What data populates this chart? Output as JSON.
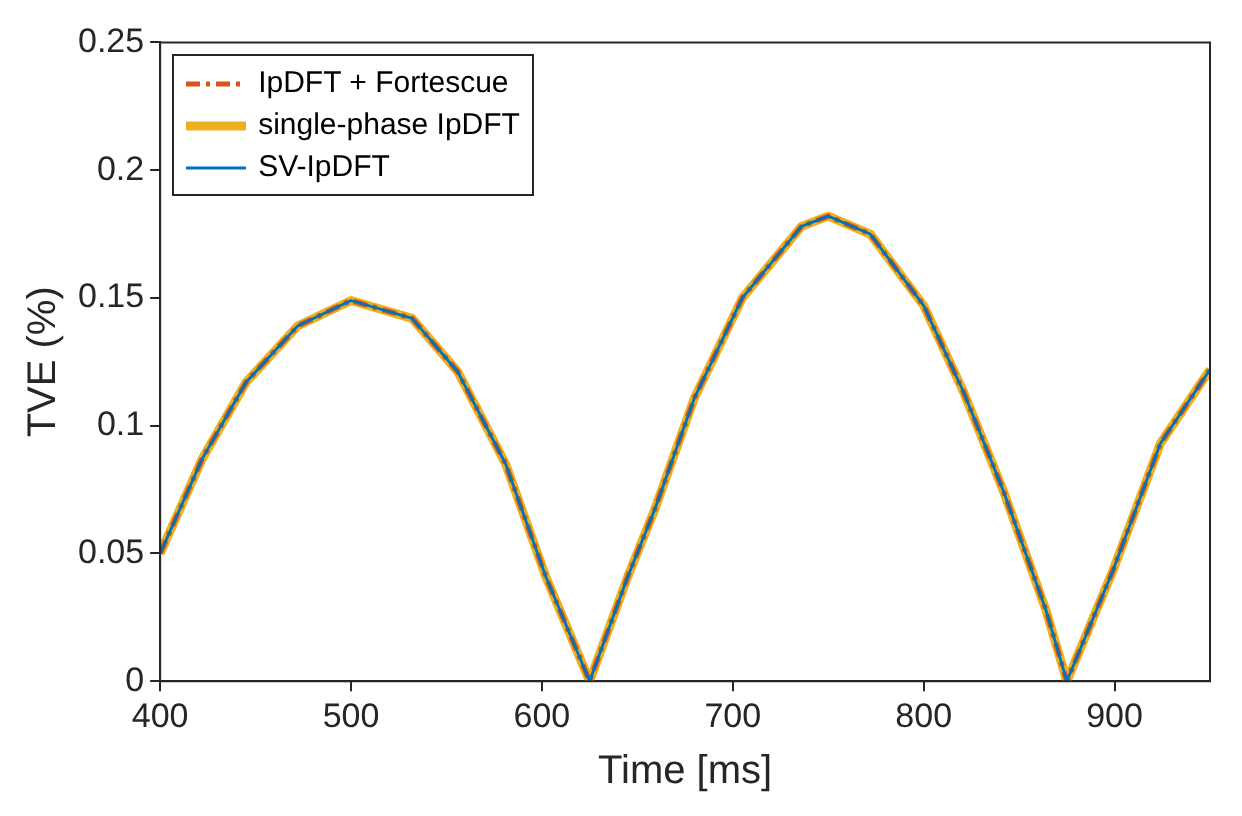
{
  "chart_data": {
    "type": "line",
    "xlabel": "Time [ms]",
    "ylabel": "TVE (%)",
    "x": [
      400,
      422,
      445,
      472,
      500,
      532,
      556,
      581,
      602,
      625,
      645,
      659,
      680,
      705,
      736,
      750,
      772,
      800,
      821,
      842,
      864,
      875,
      899,
      924,
      950
    ],
    "series": [
      {
        "name": "IpDFT + Fortescue",
        "color": "#d95319",
        "line_style": "dashed",
        "values": [
          0.05,
          0.087,
          0.117,
          0.139,
          0.149,
          0.142,
          0.121,
          0.085,
          0.041,
          0,
          0.041,
          0.067,
          0.111,
          0.15,
          0.178,
          0.182,
          0.175,
          0.147,
          0.113,
          0.074,
          0.028,
          0,
          0.043,
          0.093,
          0.122
        ]
      },
      {
        "name": "single-phase IpDFT",
        "color": "#edb120",
        "line_style": "solid",
        "values": [
          0.05,
          0.087,
          0.117,
          0.139,
          0.149,
          0.142,
          0.121,
          0.085,
          0.041,
          0,
          0.041,
          0.067,
          0.111,
          0.15,
          0.178,
          0.182,
          0.175,
          0.147,
          0.113,
          0.074,
          0.028,
          0,
          0.043,
          0.093,
          0.122
        ]
      },
      {
        "name": "SV-IpDFT",
        "color": "#0072bd",
        "line_style": "solid",
        "values": [
          0.05,
          0.087,
          0.117,
          0.139,
          0.149,
          0.142,
          0.121,
          0.085,
          0.041,
          0,
          0.041,
          0.067,
          0.111,
          0.15,
          0.178,
          0.182,
          0.175,
          0.147,
          0.113,
          0.074,
          0.028,
          0,
          0.043,
          0.093,
          0.122
        ]
      }
    ],
    "xlim": [
      400,
      950
    ],
    "xticks": [
      400,
      500,
      600,
      700,
      800,
      900
    ],
    "ylim": [
      0,
      0.25
    ],
    "yticks": [
      0,
      0.05,
      0.1,
      0.15,
      0.2,
      0.25
    ],
    "grid": false,
    "legend": "top left",
    "marker": "none"
  }
}
